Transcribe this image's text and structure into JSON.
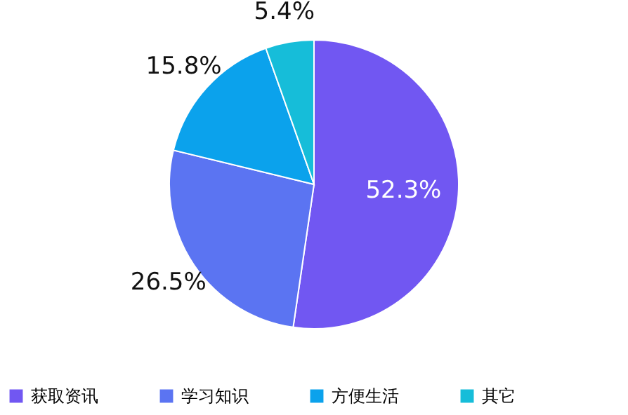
{
  "chart_data": {
    "type": "pie",
    "categories": [
      "获取资讯",
      "学习知识",
      "方便生活",
      "其它"
    ],
    "values": [
      52.3,
      26.5,
      15.8,
      5.4
    ],
    "colors": [
      "#7157f2",
      "#5b74f2",
      "#0ba2ec",
      "#16bdd9"
    ],
    "value_labels": [
      "52.3%",
      "26.5%",
      "15.8%",
      "5.4%"
    ],
    "legend": "bottom"
  }
}
